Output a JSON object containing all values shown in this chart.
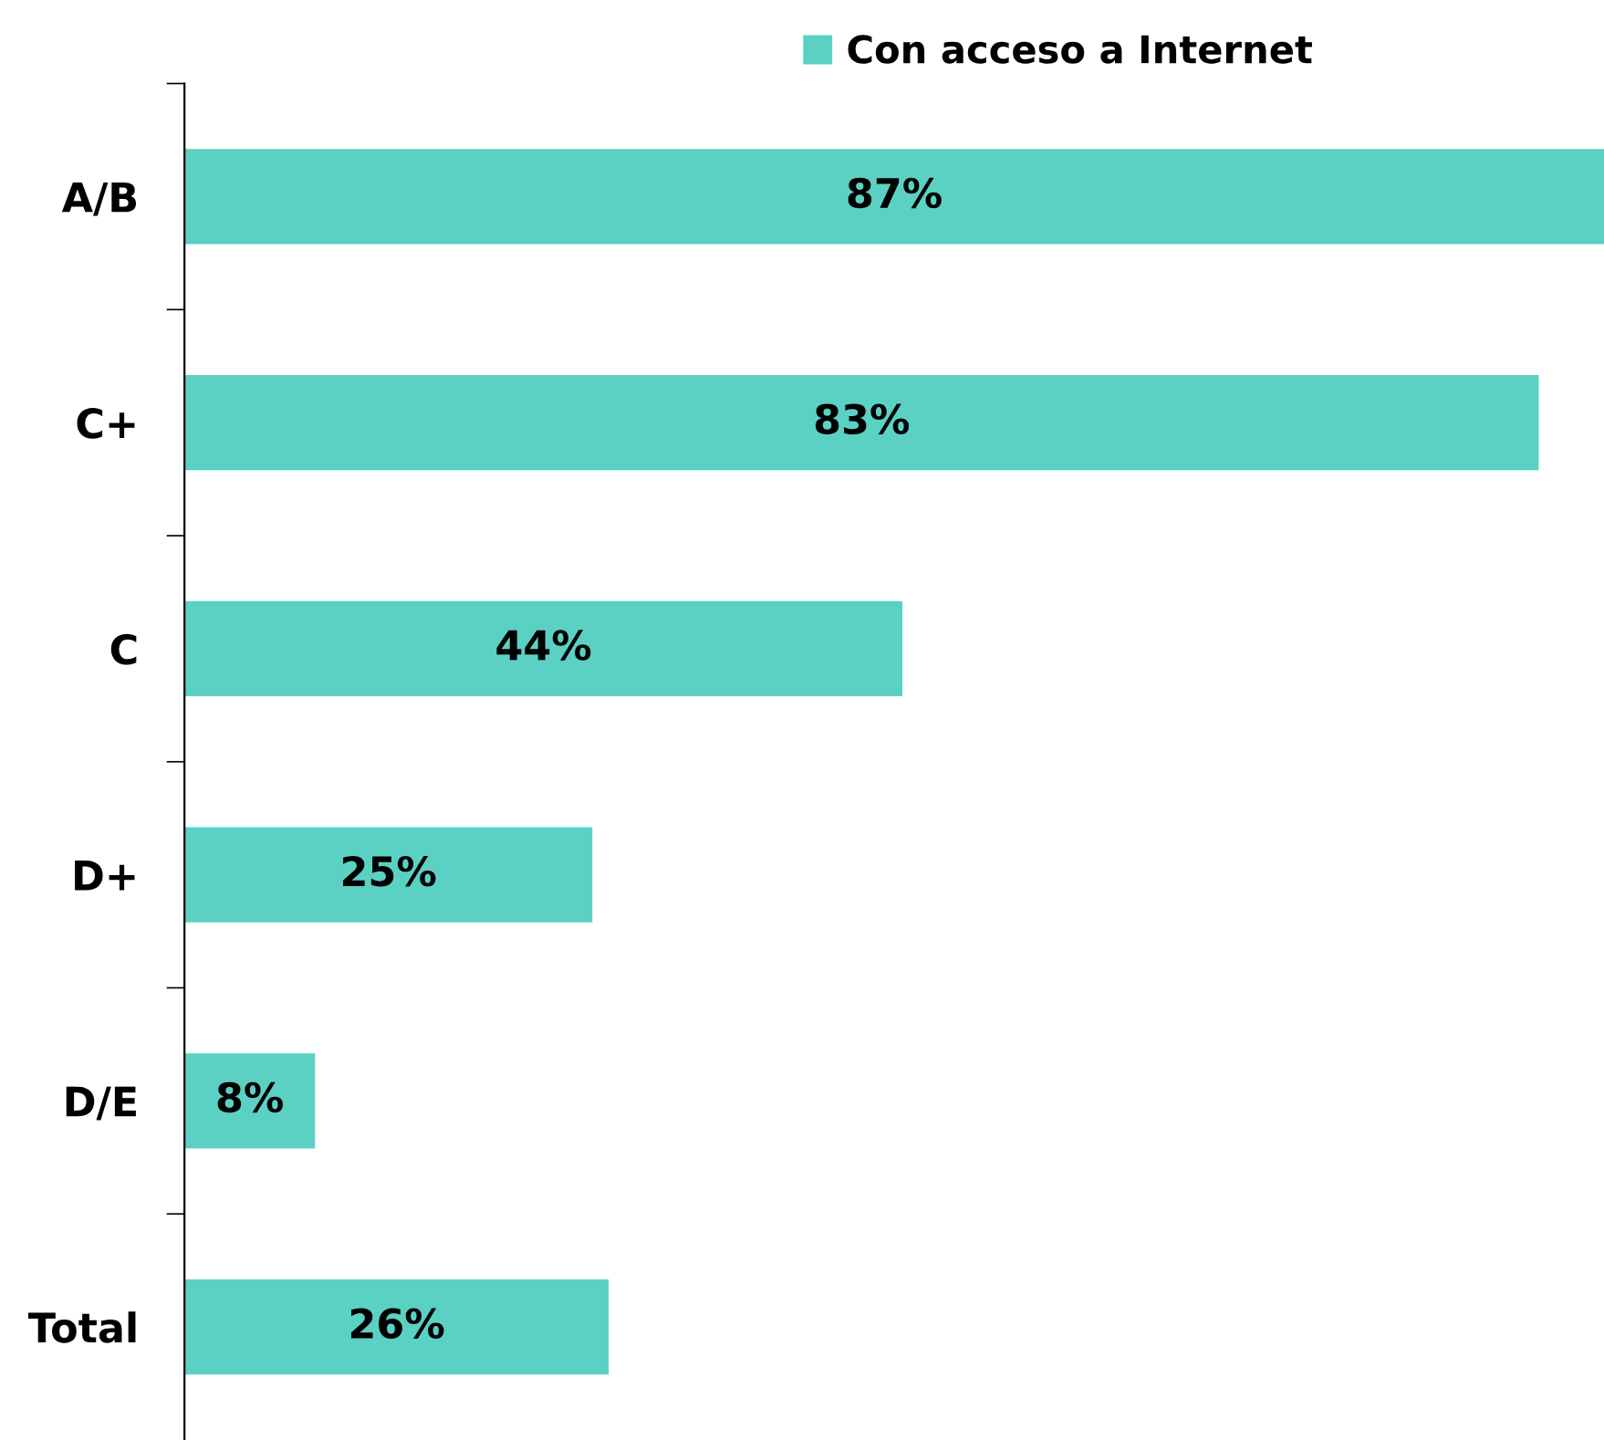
{
  "chart_data": {
    "type": "bar",
    "orientation": "horizontal",
    "categories": [
      "A/B",
      "C+",
      "C",
      "D+",
      "D/E",
      "Total"
    ],
    "series": [
      {
        "name": "Con acceso a Internet",
        "color": "#5bd1c4",
        "values": [
          87,
          83,
          44,
          25,
          8,
          26
        ],
        "value_labels": [
          "87%",
          "83%",
          "44%",
          "25%",
          "8%",
          "26%"
        ]
      }
    ],
    "legend": "top",
    "grid": false,
    "tick_labels": "y"
  }
}
